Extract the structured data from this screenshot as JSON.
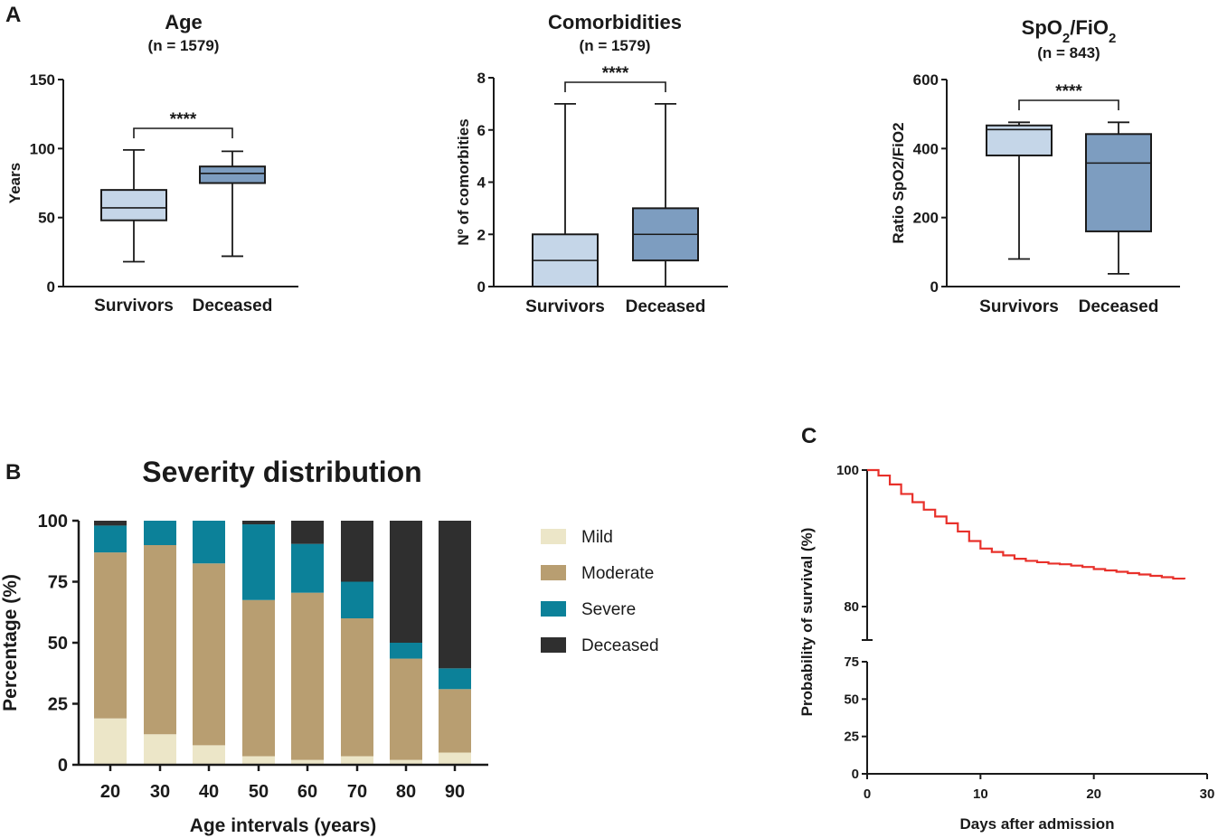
{
  "panels": {
    "a": "A",
    "b": "B",
    "c": "C"
  },
  "chart_data": [
    {
      "type": "box",
      "panel": "A",
      "title": "Age",
      "subtitle": "(n = 1579)",
      "ylabel": "Years",
      "ylim": [
        0,
        150
      ],
      "yticks": [
        "0",
        "50",
        "100",
        "150"
      ],
      "categories": [
        "Survivors",
        "Deceased"
      ],
      "significance": "****",
      "boxes": [
        {
          "name": "Survivors",
          "min": 18,
          "q1": 48,
          "median": 57,
          "q3": 70,
          "max": 99,
          "color": "#c5d6e8"
        },
        {
          "name": "Deceased",
          "min": 22,
          "q1": 75,
          "median": 82,
          "q3": 87,
          "max": 98,
          "color": "#7d9dc0"
        }
      ]
    },
    {
      "type": "box",
      "panel": "A",
      "title": "Comorbidities",
      "subtitle": "(n = 1579)",
      "ylabel": "Nº of comorbities",
      "ylim": [
        0,
        8
      ],
      "yticks": [
        "0",
        "2",
        "4",
        "6",
        "8"
      ],
      "categories": [
        "Survivors",
        "Deceased"
      ],
      "significance": "****",
      "boxes": [
        {
          "name": "Survivors",
          "min": 0,
          "q1": 0,
          "median": 1,
          "q3": 2,
          "max": 7,
          "color": "#c5d6e8"
        },
        {
          "name": "Deceased",
          "min": 0,
          "q1": 1,
          "median": 2,
          "q3": 3,
          "max": 7,
          "color": "#7d9dc0"
        }
      ]
    },
    {
      "type": "box",
      "panel": "A",
      "title_main": "SpO",
      "title_sub1": "2",
      "title_mid": "/FiO",
      "title_sub2": "2",
      "subtitle": "(n = 843)",
      "ylabel": "Ratio SpO2/FiO2",
      "ylim": [
        0,
        600
      ],
      "yticks": [
        "0",
        "200",
        "400",
        "600"
      ],
      "categories": [
        "Survivors",
        "Deceased"
      ],
      "significance": "****",
      "boxes": [
        {
          "name": "Survivors",
          "min": 80,
          "q1": 380,
          "median": 455,
          "q3": 467,
          "max": 476,
          "color": "#c5d6e8"
        },
        {
          "name": "Deceased",
          "min": 37,
          "q1": 160,
          "median": 358,
          "q3": 442,
          "max": 476,
          "color": "#7d9dc0"
        }
      ]
    },
    {
      "type": "bar",
      "stacked": true,
      "panel": "B",
      "title": "Severity distribution",
      "xlabel": "Age intervals (years)",
      "ylabel": "Percentage (%)",
      "ylim": [
        0,
        100
      ],
      "yticks": [
        "0",
        "25",
        "50",
        "75",
        "100"
      ],
      "categories": [
        "20",
        "30",
        "40",
        "50",
        "60",
        "70",
        "80",
        "90"
      ],
      "series": [
        {
          "name": "Mild",
          "color": "#ece6c8",
          "values": [
            19,
            12.5,
            8,
            3.5,
            2,
            3.5,
            2,
            5
          ]
        },
        {
          "name": "Moderate",
          "color": "#b89e71",
          "values": [
            68,
            77.5,
            74.5,
            64,
            68.5,
            56.5,
            41.5,
            26
          ]
        },
        {
          "name": "Severe",
          "color": "#0c8199",
          "values": [
            11,
            10,
            17.5,
            31,
            20,
            15,
            6.5,
            8.5
          ]
        },
        {
          "name": "Deceased",
          "color": "#2f2f2f",
          "values": [
            2,
            0,
            0,
            1.5,
            9.5,
            25,
            50,
            60.5
          ]
        }
      ]
    },
    {
      "type": "line",
      "step": true,
      "panel": "C",
      "xlabel": "Days after admission",
      "ylabel": "Probability of survival (%)",
      "xlim": [
        0,
        30
      ],
      "xticks": [
        "0",
        "10",
        "20",
        "30"
      ],
      "yticks_upper": [
        "80",
        "100"
      ],
      "yticks_lower": [
        "0",
        "25",
        "50",
        "75"
      ],
      "y_break": [
        75,
        80
      ],
      "color": "#e8302a",
      "x": [
        0,
        1,
        2,
        3,
        4,
        5,
        6,
        7,
        8,
        9,
        10,
        11,
        12,
        13,
        14,
        15,
        16,
        17,
        18,
        19,
        20,
        21,
        22,
        23,
        24,
        25,
        26,
        27,
        28
      ],
      "y": [
        100,
        99.2,
        97.9,
        96.5,
        95.3,
        94.2,
        93.2,
        92.2,
        91.0,
        89.6,
        88.5,
        88.0,
        87.5,
        87.0,
        86.7,
        86.5,
        86.3,
        86.2,
        86.0,
        85.8,
        85.5,
        85.3,
        85.1,
        84.9,
        84.7,
        84.5,
        84.3,
        84.1,
        84.0
      ]
    }
  ]
}
